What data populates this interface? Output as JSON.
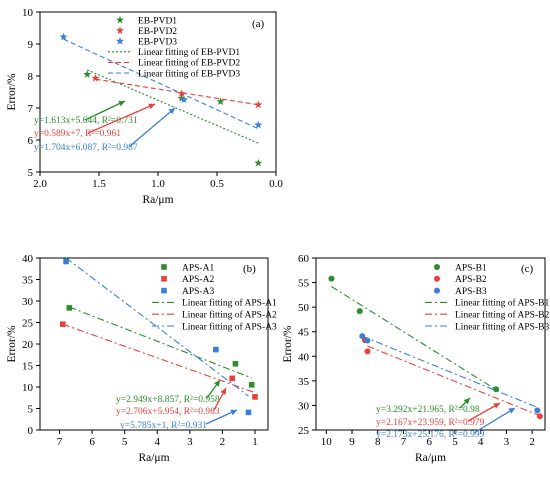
{
  "chart_data": [
    {
      "type": "scatter",
      "panel_label": "(a)",
      "xlabel": "Ra/μm",
      "ylabel": "Error/%",
      "xlim": [
        2.0,
        0.0
      ],
      "ylim": [
        5,
        10
      ],
      "x_reversed": true,
      "x_ticks": [
        2.0,
        1.5,
        1.0,
        0.5,
        0.0
      ],
      "x_tick_labels": [
        "2.0",
        "1.5",
        "1.0",
        "0.5",
        "0.0"
      ],
      "y_ticks": [
        5,
        6,
        7,
        8,
        9,
        10
      ],
      "y_tick_labels": [
        "5",
        "6",
        "7",
        "8",
        "9",
        "10"
      ],
      "marker": "star",
      "legend_position": "top-right",
      "series": [
        {
          "name": "EB-PVD1",
          "color": "#2e8b2e",
          "x": [
            1.6,
            0.8,
            0.47,
            0.15
          ],
          "y": [
            8.05,
            7.3,
            7.2,
            5.28
          ]
        },
        {
          "name": "EB-PVD2",
          "color": "#e8413c",
          "x": [
            1.53,
            0.8,
            0.15
          ],
          "y": [
            7.93,
            7.45,
            7.1
          ]
        },
        {
          "name": "EB-PVD3",
          "color": "#3a7fd5",
          "x": [
            1.8,
            0.78,
            0.15
          ],
          "y": [
            9.22,
            7.26,
            6.47
          ]
        }
      ],
      "fits": [
        {
          "name": "Linear fitting of EB-PVD1",
          "color": "#2e8b2e",
          "dash": "dot",
          "x": [
            1.6,
            0.15
          ],
          "y": [
            8.19,
            5.9
          ],
          "equation": "y=1.613x+5.644, R²=0.731",
          "eq_color": "#2e8b2e"
        },
        {
          "name": "Linear fitting of EB-PVD2",
          "color": "#e8413c",
          "dash": "dash",
          "x": [
            1.53,
            0.15
          ],
          "y": [
            7.9,
            7.1
          ],
          "equation": "y=0.589x+7, R²=0.961",
          "eq_color": "#e8413c"
        },
        {
          "name": "Linear fitting of EB-PVD3",
          "color": "#3a7fd5",
          "dash": "dash",
          "x": [
            1.8,
            0.15
          ],
          "y": [
            9.15,
            6.35
          ],
          "equation": "y=1.704x+6.087, R²=0.987",
          "eq_color": "#3a7fd5"
        }
      ]
    },
    {
      "type": "scatter",
      "panel_label": "(b)",
      "xlabel": "Ra/μm",
      "ylabel": "Error/%",
      "xlim": [
        7.6,
        0.6
      ],
      "ylim": [
        0,
        40
      ],
      "x_reversed": true,
      "x_ticks": [
        7,
        6,
        5,
        4,
        3,
        2,
        1
      ],
      "x_tick_labels": [
        "7",
        "6",
        "5",
        "4",
        "3",
        "2",
        "1"
      ],
      "y_ticks": [
        0,
        5,
        10,
        15,
        20,
        25,
        30,
        35,
        40
      ],
      "y_tick_labels": [
        "0",
        "5",
        "10",
        "15",
        "20",
        "25",
        "30",
        "35",
        "40"
      ],
      "marker": "square",
      "legend_position": "top-right",
      "series": [
        {
          "name": "APS-A1",
          "color": "#2e8b2e",
          "x": [
            6.7,
            1.6,
            1.1
          ],
          "y": [
            28.4,
            15.4,
            10.5
          ]
        },
        {
          "name": "APS-A2",
          "color": "#e8413c",
          "x": [
            6.9,
            1.7,
            1.0
          ],
          "y": [
            24.6,
            12.0,
            7.7
          ]
        },
        {
          "name": "APS-A3",
          "color": "#3a7fd5",
          "x": [
            6.8,
            2.2,
            1.2
          ],
          "y": [
            39.2,
            18.7,
            4.1
          ]
        }
      ],
      "fits": [
        {
          "name": "Linear fitting of APS-A1",
          "color": "#2e8b2e",
          "dash": "dashdot",
          "x": [
            6.7,
            1.1
          ],
          "y": [
            28.6,
            12.1
          ],
          "equation": "y=2.949x+8.857, R²=0.958",
          "eq_color": "#2e8b2e"
        },
        {
          "name": "Linear fitting of APS-A2",
          "color": "#e8413c",
          "dash": "dashdot",
          "x": [
            6.9,
            1.0
          ],
          "y": [
            24.6,
            8.7
          ],
          "equation": "y=2.706x+5.954, R²=0.983",
          "eq_color": "#e8413c"
        },
        {
          "name": "Linear fitting of APS-A3",
          "color": "#3a7fd5",
          "dash": "dashdot",
          "x": [
            6.8,
            1.2
          ],
          "y": [
            40.0,
            7.9
          ],
          "equation": "y=5.785x+1, R²=0.931",
          "eq_color": "#3a7fd5"
        }
      ]
    },
    {
      "type": "scatter",
      "panel_label": "(c)",
      "xlabel": "Ra/μm",
      "ylabel": "Error/%",
      "xlim": [
        10.4,
        1.5
      ],
      "ylim": [
        25,
        60
      ],
      "x_reversed": true,
      "x_ticks": [
        10,
        9,
        8,
        7,
        6,
        5,
        4,
        3,
        2
      ],
      "x_tick_labels": [
        "10",
        "9",
        "8",
        "7",
        "6",
        "5",
        "4",
        "3",
        "2"
      ],
      "y_ticks": [
        25,
        30,
        35,
        40,
        45,
        50,
        55,
        60
      ],
      "y_tick_labels": [
        "25",
        "30",
        "35",
        "40",
        "45",
        "50",
        "55",
        "60"
      ],
      "marker": "circle",
      "legend_position": "top-right",
      "series": [
        {
          "name": "APS-B1",
          "color": "#2e8b2e",
          "x": [
            9.8,
            8.7,
            3.4
          ],
          "y": [
            55.8,
            49.2,
            33.3
          ]
        },
        {
          "name": "APS-B2",
          "color": "#e8413c",
          "x": [
            8.4,
            8.5,
            1.7
          ],
          "y": [
            41.0,
            43.3,
            27.8
          ]
        },
        {
          "name": "APS-B3",
          "color": "#3a7fd5",
          "x": [
            8.6,
            8.4,
            1.8
          ],
          "y": [
            44.1,
            43.2,
            29.0
          ]
        }
      ],
      "fits": [
        {
          "name": "Linear fitting of APS-B1",
          "color": "#2e8b2e",
          "dash": "dashdot",
          "x": [
            9.8,
            3.4
          ],
          "y": [
            54.2,
            33.2
          ],
          "equation": "y=3.292x+21.965, R²=0.98",
          "eq_color": "#2e8b2e"
        },
        {
          "name": "Linear fitting of APS-B2",
          "color": "#e8413c",
          "dash": "dashdot",
          "x": [
            8.4,
            1.7
          ],
          "y": [
            42.1,
            27.9
          ],
          "equation": "y=2.167x+23.959, R²=0.979",
          "eq_color": "#e8413c"
        },
        {
          "name": "Linear fitting of APS-B3",
          "color": "#3a7fd5",
          "dash": "dashdot",
          "x": [
            8.6,
            1.8
          ],
          "y": [
            44.1,
            29.6
          ],
          "equation": "y=2.173x+25.176, R²=0.999",
          "eq_color": "#3a7fd5"
        }
      ]
    }
  ]
}
